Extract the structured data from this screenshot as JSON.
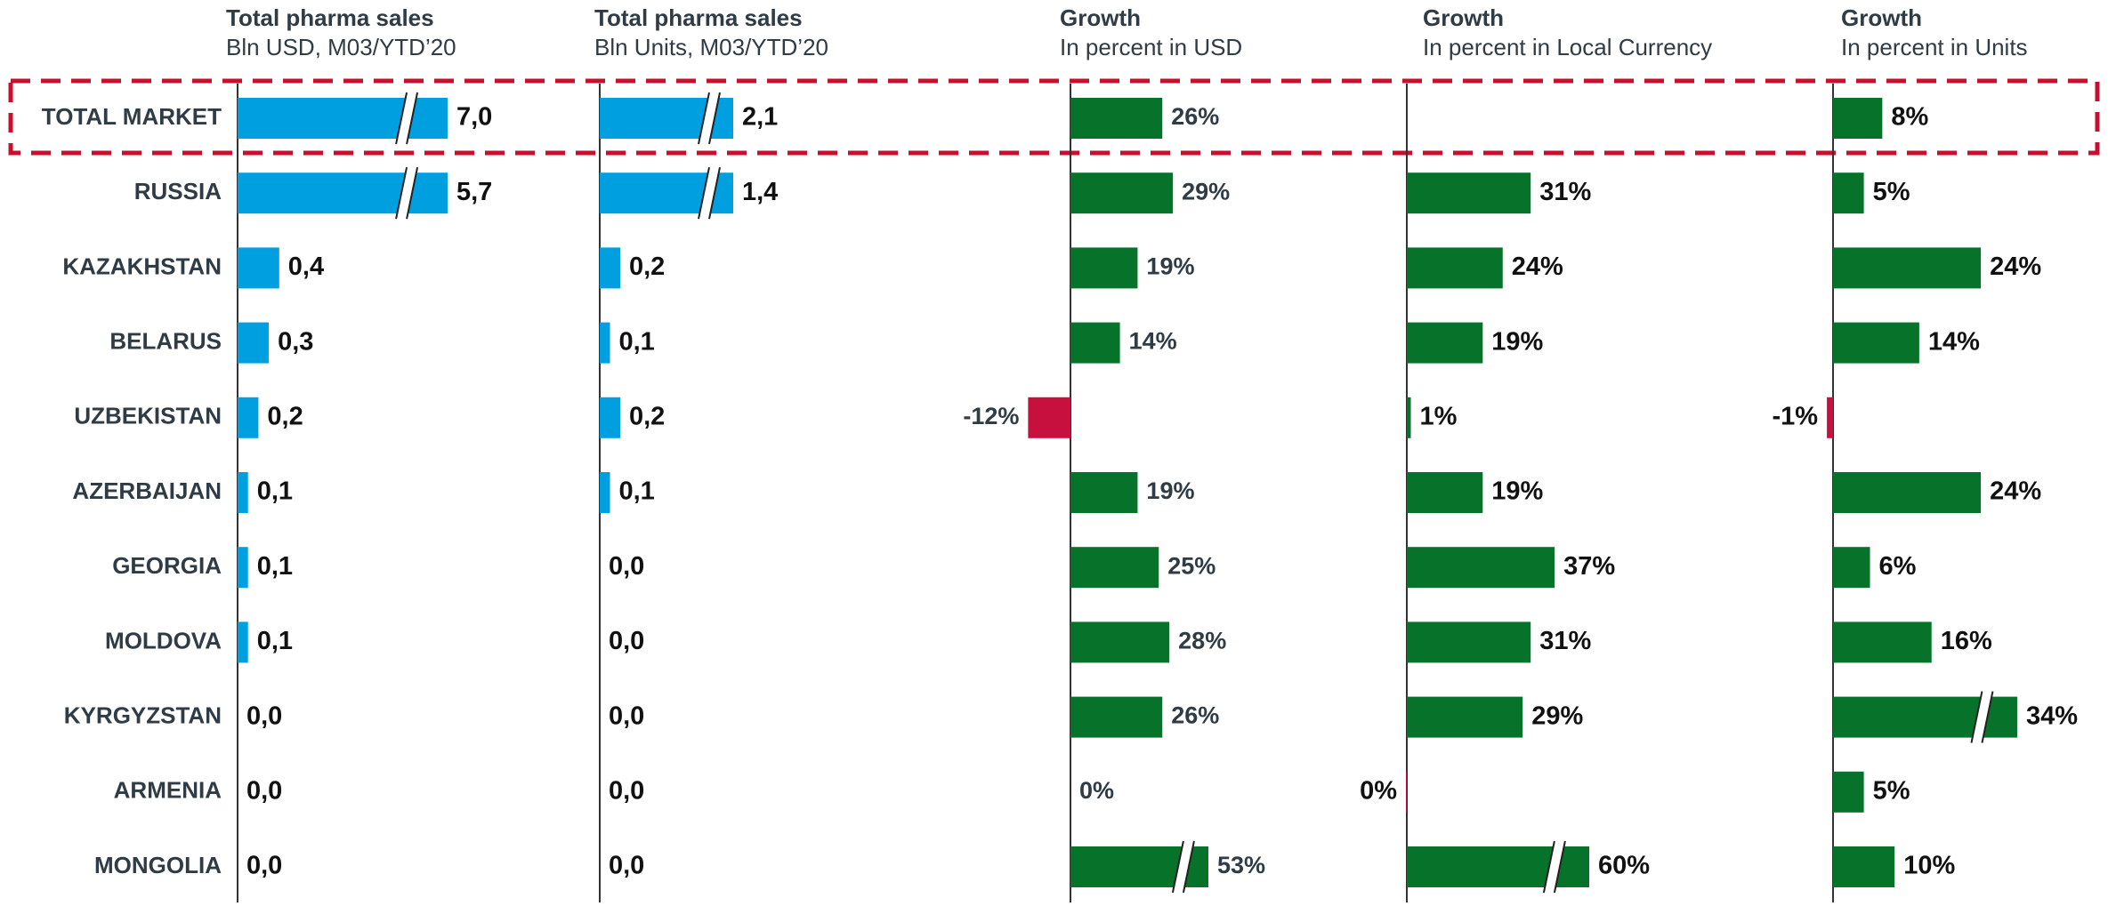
{
  "chart_data": [
    {
      "type": "bar",
      "orientation": "horizontal",
      "title": "Total pharma sales",
      "subtitle": "Bln USD, M03/YTD’20",
      "categories": [
        "TOTAL MARKET",
        "RUSSIA",
        "KAZAKHSTAN",
        "BELARUS",
        "UZBEKISTAN",
        "AZERBAIJAN",
        "GEORGIA",
        "MOLDOVA",
        "KYRGYZSTAN",
        "ARMENIA",
        "MONGOLIA"
      ],
      "values": [
        7.0,
        5.7,
        0.4,
        0.3,
        0.2,
        0.1,
        0.1,
        0.1,
        0.0,
        0.0,
        0.0
      ],
      "value_labels": [
        "7,0",
        "5,7",
        "0,4",
        "0,3",
        "0,2",
        "0,1",
        "0,1",
        "0,1",
        "0,0",
        "0,0",
        "0,0"
      ],
      "color": "#009fe0",
      "negative_color": "#c8103e"
    },
    {
      "type": "bar",
      "orientation": "horizontal",
      "title": "Total pharma sales",
      "subtitle": "Bln Units, M03/YTD’20",
      "values": [
        2.1,
        1.4,
        0.2,
        0.1,
        0.2,
        0.1,
        0.0,
        0.0,
        0.0,
        0.0,
        0.0
      ],
      "value_labels": [
        "2,1",
        "1,4",
        "0,2",
        "0,1",
        "0,2",
        "0,1",
        "0,0",
        "0,0",
        "0,0",
        "0,0",
        "0,0"
      ],
      "color": "#009fe0",
      "negative_color": "#c8103e"
    },
    {
      "type": "bar",
      "orientation": "horizontal",
      "title": "Growth",
      "subtitle": "In percent in USD",
      "values": [
        26,
        29,
        19,
        14,
        -12,
        19,
        25,
        28,
        26,
        0,
        53
      ],
      "value_labels": [
        "26%",
        "29%",
        "19%",
        "14%",
        "-12%",
        "19%",
        "25%",
        "28%",
        "26%",
        "0%",
        "53%"
      ],
      "color": "#06722a",
      "negative_color": "#c8103e"
    },
    {
      "type": "bar",
      "orientation": "horizontal",
      "title": "Growth",
      "subtitle": "In percent in Local Currency",
      "values": [
        null,
        31,
        24,
        19,
        1,
        19,
        37,
        31,
        29,
        -0.2,
        60
      ],
      "value_labels": [
        null,
        "31%",
        "24%",
        "19%",
        "1%",
        "19%",
        "37%",
        "31%",
        "29%",
        "0%",
        "60%"
      ],
      "color": "#06722a",
      "negative_color": "#c8103e"
    },
    {
      "type": "bar",
      "orientation": "horizontal",
      "title": "Growth",
      "subtitle": "In percent in Units",
      "values": [
        8,
        5,
        24,
        14,
        -1,
        24,
        6,
        16,
        34,
        5,
        10
      ],
      "value_labels": [
        "8%",
        "5%",
        "24%",
        "14%",
        "-1%",
        "24%",
        "6%",
        "16%",
        "34%",
        "5%",
        "10%"
      ],
      "color": "#06722a",
      "negative_color": "#c8103e"
    }
  ]
}
